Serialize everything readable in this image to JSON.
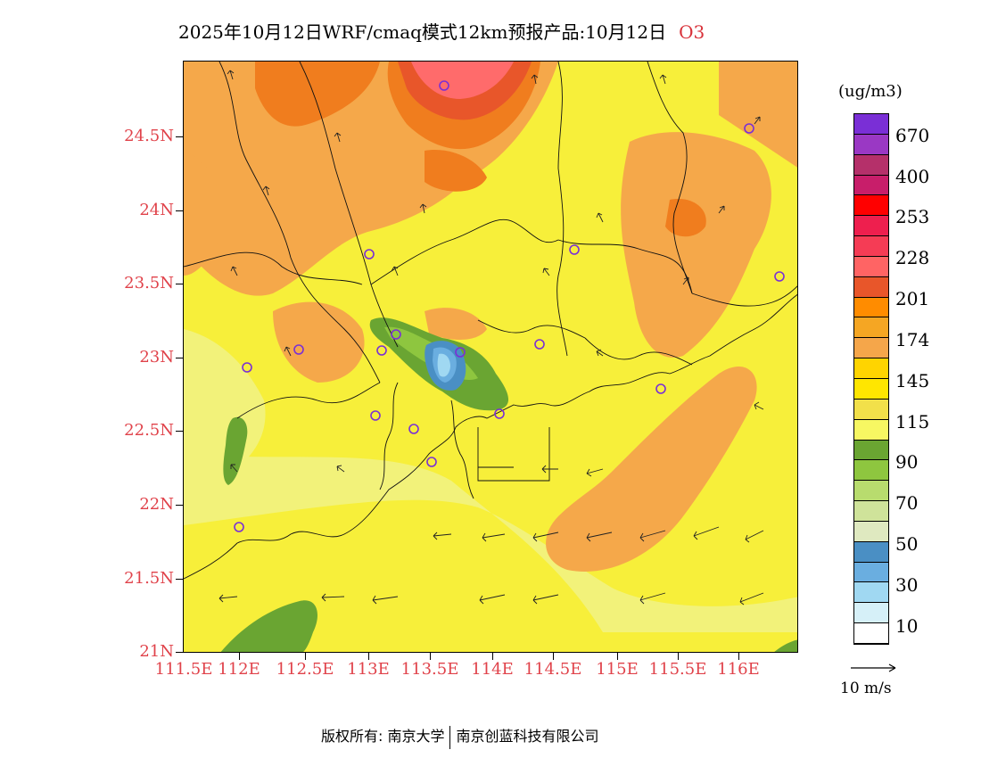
{
  "title": {
    "main": "2025年10月12日WRF/cmaq模式12km预报产品:10月12日",
    "species": "O3"
  },
  "axes": {
    "y_labels": [
      "24.5N",
      "24N",
      "23.5N",
      "23N",
      "22.5N",
      "22N",
      "21.5N",
      "21N"
    ],
    "x_labels": [
      "111.5E",
      "112E",
      "112.5E",
      "113E",
      "113.5E",
      "114E",
      "114.5E",
      "115E",
      "115.5E",
      "116E"
    ]
  },
  "legend": {
    "units": "(ug/m3)",
    "labels": [
      "670",
      "400",
      "253",
      "228",
      "201",
      "174",
      "145",
      "115",
      "90",
      "70",
      "50",
      "30",
      "10"
    ],
    "colors_top_to_bottom": [
      "#7a2fd6",
      "#9a38c4",
      "#b5306a",
      "#c81e6a",
      "#ff0000",
      "#ee1f4e",
      "#f53c55",
      "#ff6464",
      "#e8562a",
      "#ff8c00",
      "#f5a623",
      "#f5a64a",
      "#ffd400",
      "#ffe600",
      "#f2e04a",
      "#f7f762",
      "#6aa532",
      "#8ec63f",
      "#b8dc6e",
      "#cfe39a",
      "#dfe9c0",
      "#4a8fc4",
      "#6aaee0",
      "#a0d8f2",
      "#d6f0f8",
      "#ffffff"
    ]
  },
  "wind_reference": {
    "label": "10 m/s"
  },
  "map_colors": {
    "background": "#f7ef3a",
    "light_band": "#f2f27a",
    "orange": "#f5a84a",
    "dark_orange": "#f07d1e",
    "red_orange": "#e8562a",
    "salmon": "#ff6b6b",
    "green_dark": "#6aa532",
    "green_mid": "#8ec63f",
    "green_light": "#b8dc6e",
    "blue_dark": "#4a8fc4",
    "blue_mid": "#6aaee0",
    "blue_light": "#a0d8f2",
    "station": "#7a2fd6"
  },
  "copyright": {
    "left": "版权所有: 南京大学",
    "right": "南京创蓝科技有限公司"
  }
}
